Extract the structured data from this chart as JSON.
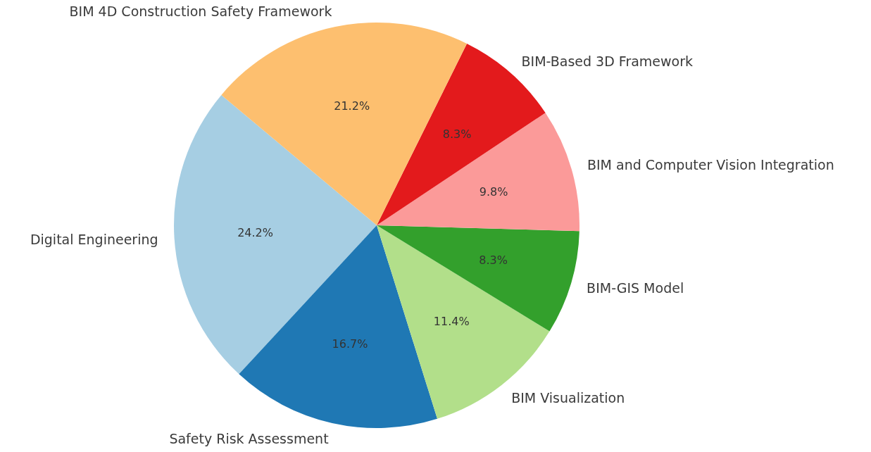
{
  "chart_data": {
    "type": "pie",
    "categories": [
      "Digital Engineering",
      "Safety Risk Assessment",
      "BIM Visualization",
      "BIM-GIS Model",
      "BIM and Computer Vision Integration",
      "BIM-Based 3D Framework",
      "BIM 4D Construction Safety Framework"
    ],
    "values": [
      24.2,
      16.7,
      11.4,
      8.3,
      9.8,
      8.3,
      21.2
    ],
    "colors": [
      "#a6cee3",
      "#1f78b4",
      "#b2df8a",
      "#33a02c",
      "#fb9a99",
      "#e31a1c",
      "#fdbf6f"
    ],
    "value_labels": [
      "24.2%",
      "16.7%",
      "11.4%",
      "8.3%",
      "9.8%",
      "8.3%",
      "21.2%"
    ],
    "legend": false
  }
}
